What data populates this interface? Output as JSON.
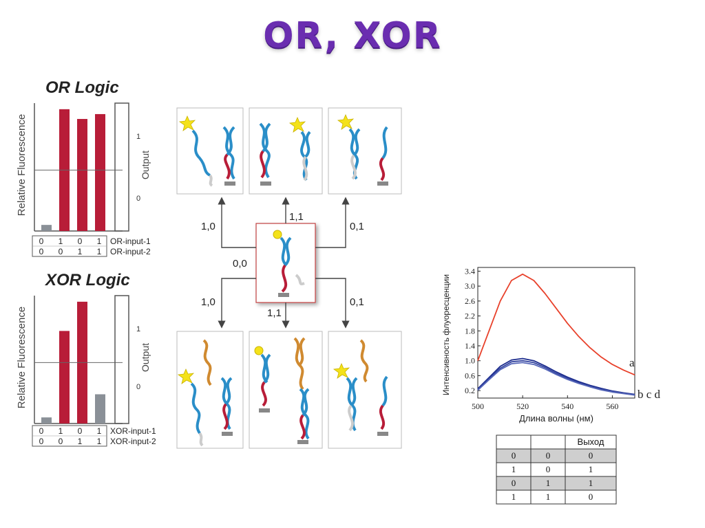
{
  "title": "OR, XOR",
  "or_chart": {
    "title": "OR Logic",
    "ylabel": "Relative Fluorescence",
    "output_label": "Output",
    "output_ticks": [
      "1",
      "0"
    ],
    "input1_label": "OR-input-1",
    "input2_label": "OR-input-2",
    "input1": [
      "0",
      "1",
      "0",
      "1"
    ],
    "input2": [
      "0",
      "0",
      "1",
      "1"
    ]
  },
  "xor_chart": {
    "title": "XOR Logic",
    "ylabel": "Relative Fluorescence",
    "output_label": "Output",
    "output_ticks": [
      "1",
      "0"
    ],
    "input1_label": "XOR-input-1",
    "input2_label": "XOR-input-2",
    "input1": [
      "0",
      "1",
      "0",
      "1"
    ],
    "input2": [
      "0",
      "0",
      "1",
      "1"
    ]
  },
  "chart_data": [
    {
      "type": "bar",
      "title": "OR Logic",
      "ylabel": "Relative Fluorescence",
      "categories": [
        "0,0",
        "1,0",
        "0,1",
        "1,1"
      ],
      "values": [
        0.05,
        1.0,
        0.92,
        0.96
      ],
      "ylim": [
        0,
        1.05
      ],
      "threshold": 0.5,
      "bar_colors": [
        "#8a9097",
        "#b81d38",
        "#b81d38",
        "#b81d38"
      ]
    },
    {
      "type": "bar",
      "title": "XOR Logic",
      "ylabel": "Relative Fluorescence",
      "categories": [
        "0,0",
        "1,0",
        "0,1",
        "1,1"
      ],
      "values": [
        0.05,
        0.76,
        1.0,
        0.24
      ],
      "ylim": [
        0,
        1.05
      ],
      "threshold": 0.5,
      "bar_colors": [
        "#8a9097",
        "#b81d38",
        "#b81d38",
        "#8a9097"
      ]
    },
    {
      "type": "line",
      "xlabel": "Длина волны (нм)",
      "ylabel": "Интенсивность флуоресценции",
      "xlim": [
        500,
        570
      ],
      "ylim": [
        0,
        3.5
      ],
      "xticks": [
        "500",
        "520",
        "540",
        "560"
      ],
      "yticks": [
        "0.2",
        "0.6",
        "1.0",
        "1.4",
        "1.8",
        "2.2",
        "2.6",
        "3.0",
        "3.4"
      ],
      "series": [
        {
          "name": "a",
          "color": "#e8402a",
          "x": [
            500,
            505,
            510,
            515,
            520,
            525,
            530,
            535,
            540,
            545,
            550,
            555,
            560,
            565,
            570
          ],
          "y": [
            1.0,
            1.8,
            2.6,
            3.15,
            3.32,
            3.15,
            2.8,
            2.4,
            2.0,
            1.65,
            1.35,
            1.1,
            0.9,
            0.75,
            0.62
          ]
        },
        {
          "name": "b",
          "color": "#1a2a8c",
          "x": [
            500,
            505,
            510,
            515,
            520,
            525,
            530,
            535,
            540,
            545,
            550,
            555,
            560,
            565,
            570
          ],
          "y": [
            0.25,
            0.55,
            0.85,
            1.02,
            1.06,
            1.0,
            0.86,
            0.7,
            0.56,
            0.44,
            0.34,
            0.26,
            0.19,
            0.14,
            0.1
          ]
        },
        {
          "name": "c",
          "color": "#3344a0",
          "x": [
            500,
            505,
            510,
            515,
            520,
            525,
            530,
            535,
            540,
            545,
            550,
            555,
            560,
            565,
            570
          ],
          "y": [
            0.23,
            0.52,
            0.8,
            0.97,
            1.0,
            0.95,
            0.82,
            0.66,
            0.53,
            0.41,
            0.32,
            0.24,
            0.18,
            0.13,
            0.09
          ]
        },
        {
          "name": "d",
          "color": "#5566b8",
          "x": [
            500,
            505,
            510,
            515,
            520,
            525,
            530,
            535,
            540,
            545,
            550,
            555,
            560,
            565,
            570
          ],
          "y": [
            0.21,
            0.49,
            0.76,
            0.92,
            0.95,
            0.9,
            0.78,
            0.63,
            0.5,
            0.39,
            0.3,
            0.22,
            0.16,
            0.12,
            0.08
          ]
        }
      ],
      "series_label_bcd": "b c d"
    }
  ],
  "diagram": {
    "center_label": "0,0",
    "arrows": [
      "1,0",
      "1,1",
      "0,1",
      "1,0",
      "1,1",
      "0,1"
    ]
  },
  "truth_table": {
    "headers": [
      "",
      "",
      "Выход"
    ],
    "rows": [
      [
        "0",
        "0",
        "0"
      ],
      [
        "1",
        "0",
        "1"
      ],
      [
        "0",
        "1",
        "1"
      ],
      [
        "1",
        "1",
        "0"
      ]
    ]
  }
}
